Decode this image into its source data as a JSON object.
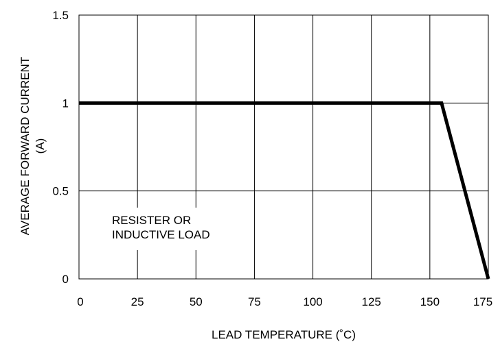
{
  "chart_data": {
    "type": "line",
    "xlabel": "LEAD TEMPERATURE (˚C)",
    "ylabel_lines": [
      "AVERAGE FORWARD CURRENT",
      "(A)"
    ],
    "xlim": [
      0,
      175
    ],
    "ylim": [
      0,
      1.5
    ],
    "x_ticks": [
      0,
      25,
      50,
      75,
      100,
      125,
      150,
      175
    ],
    "y_ticks": [
      0,
      0.5,
      1,
      1.5
    ],
    "grid": true,
    "series": [
      {
        "x": [
          0,
          155,
          175
        ],
        "y": [
          1,
          1,
          0
        ],
        "color": "#000000"
      }
    ],
    "annotation_lines": [
      "RESISTER OR",
      "INDUCTIVE LOAD"
    ]
  }
}
